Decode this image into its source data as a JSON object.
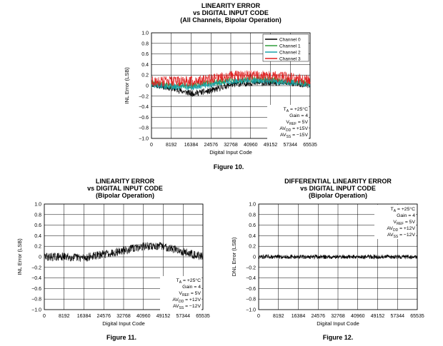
{
  "chart_data": [
    {
      "type": "line",
      "title": [
        "LINEARITY ERROR",
        "vs DIGITAL INPUT CODE",
        "(All Channels, Bipolar Operation)"
      ],
      "xlabel": "Digital Input Code",
      "ylabel": "INL Error (LSB)",
      "xlim": [
        0,
        65535
      ],
      "ylim": [
        -1.0,
        1.0
      ],
      "xticks": [
        "0",
        "8192",
        "16384",
        "24576",
        "32768",
        "40960",
        "49152",
        "57344",
        "65535"
      ],
      "yticks": [
        "1.0",
        "0.8",
        "0.6",
        "0.4",
        "0.2",
        "0",
        "−0.2",
        "−0.4",
        "−0.6",
        "−0.8",
        "−1.0"
      ],
      "grid": true,
      "legend": "top-right",
      "series": [
        {
          "name": "Channel 0",
          "color": "#000000",
          "x": [
            0,
            8192,
            16384,
            24576,
            32768,
            40960,
            49152,
            57344,
            65535
          ],
          "values": [
            0.03,
            -0.05,
            -0.15,
            -0.1,
            0.02,
            0.05,
            0.05,
            0.05,
            0.0
          ],
          "noise": 0.06
        },
        {
          "name": "Channel 1",
          "color": "#2e9e3a",
          "x": [
            0,
            8192,
            16384,
            24576,
            32768,
            40960,
            49152,
            57344,
            65535
          ],
          "values": [
            0.05,
            0.0,
            0.0,
            0.05,
            0.1,
            0.12,
            0.12,
            0.08,
            0.05
          ],
          "noise": 0.06
        },
        {
          "name": "Channel 2",
          "color": "#1aa0a8",
          "x": [
            0,
            8192,
            16384,
            24576,
            32768,
            40960,
            49152,
            57344,
            65535
          ],
          "values": [
            0.02,
            -0.02,
            -0.03,
            0.02,
            0.08,
            0.1,
            0.08,
            0.06,
            0.02
          ],
          "noise": 0.06
        },
        {
          "name": "Channel 3",
          "color": "#e02020",
          "x": [
            0,
            8192,
            16384,
            24576,
            32768,
            40960,
            49152,
            57344,
            65535
          ],
          "values": [
            0.08,
            0.08,
            0.08,
            0.12,
            0.18,
            0.2,
            0.18,
            0.15,
            0.1
          ],
          "noise": 0.1
        }
      ],
      "conditions": [
        "TA = +25°C",
        "Gain = 4",
        "VREF = 5V",
        "AVDD = +15V",
        "AVSS = −15V"
      ],
      "caption": "Figure 10."
    },
    {
      "type": "line",
      "title": [
        "LINEARITY ERROR",
        "vs DIGITAL INPUT CODE",
        "(Bipolar Operation)"
      ],
      "xlabel": "Digital Input Code",
      "ylabel": "INL Error (LSB)",
      "xlim": [
        0,
        65535
      ],
      "ylim": [
        -1.0,
        1.0
      ],
      "xticks": [
        "0",
        "8192",
        "16384",
        "24576",
        "32768",
        "40960",
        "49152",
        "57344",
        "65535"
      ],
      "yticks": [
        "1.0",
        "0.8",
        "0.6",
        "0.4",
        "0.2",
        "0",
        "−0.2",
        "−0.4",
        "−0.6",
        "−0.8",
        "−1.0"
      ],
      "grid": true,
      "series": [
        {
          "color": "#000000",
          "x": [
            0,
            8192,
            16384,
            24576,
            32768,
            40960,
            49152,
            57344,
            65535
          ],
          "values": [
            0.0,
            0.0,
            -0.02,
            0.05,
            0.12,
            0.2,
            0.2,
            0.1,
            0.0
          ],
          "noise": 0.08
        }
      ],
      "conditions": [
        "TA = +25°C",
        "Gain = 4",
        "VREF = 5V",
        "AVDD = +12V",
        "AVSS = −12V"
      ],
      "caption": "Figure 11."
    },
    {
      "type": "line",
      "title": [
        "DIFFERENTIAL LINEARITY ERROR",
        "vs DIGITAL INPUT CODE",
        "(Bipolar Operation)"
      ],
      "xlabel": "Digital Input Code",
      "ylabel": "DNL Error (LSB)",
      "xlim": [
        0,
        65535
      ],
      "ylim": [
        -1.0,
        1.0
      ],
      "xticks": [
        "0",
        "8192",
        "16384",
        "24576",
        "32768",
        "40960",
        "49152",
        "57344",
        "65535"
      ],
      "yticks": [
        "1.0",
        "0.8",
        "0.6",
        "0.4",
        "0.2",
        "0",
        "−0.2",
        "−0.4",
        "−0.6",
        "−0.8",
        "−1.0"
      ],
      "grid": true,
      "series": [
        {
          "color": "#000000",
          "x": [
            0,
            8192,
            16384,
            24576,
            32768,
            40960,
            49152,
            57344,
            65535
          ],
          "values": [
            0,
            0,
            0,
            0,
            0,
            0,
            0,
            0,
            0
          ],
          "noise": 0.04
        }
      ],
      "conditions": [
        "TA = +25°C",
        "Gain = 4",
        "VREF = 5V",
        "AVDD = +12V",
        "AVSS = −12V"
      ],
      "caption": "Figure 12."
    }
  ]
}
